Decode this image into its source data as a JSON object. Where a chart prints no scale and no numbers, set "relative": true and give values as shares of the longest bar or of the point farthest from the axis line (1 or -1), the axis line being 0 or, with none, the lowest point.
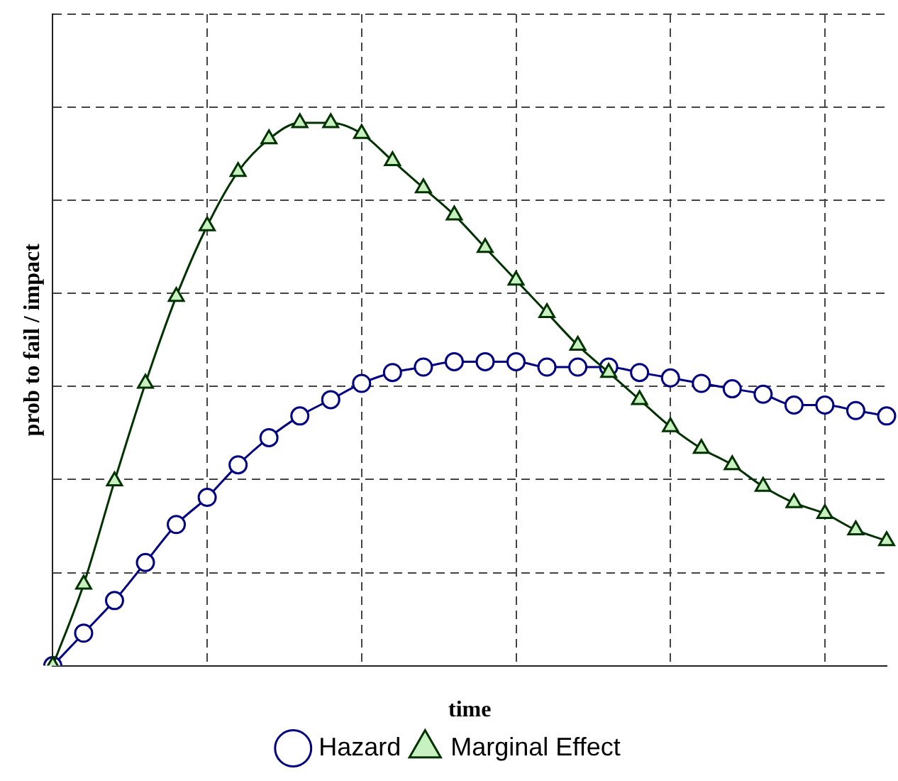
{
  "chart_data": {
    "type": "line",
    "relative": true,
    "xlabel": "time",
    "ylabel": "prob to fail / impact",
    "categories": [
      null,
      null,
      null,
      null,
      null,
      null,
      null,
      null,
      null,
      null,
      null,
      null,
      null,
      null,
      null,
      null,
      null,
      null,
      null,
      null,
      null,
      null,
      null,
      null,
      null,
      null,
      null,
      null
    ],
    "grid": true,
    "legend": "bottom",
    "series": [
      {
        "name": "Hazard",
        "color": "#000080",
        "marker": "circle",
        "values": [
          0,
          0.06,
          0.12,
          0.19,
          0.26,
          0.31,
          0.37,
          0.42,
          0.46,
          0.49,
          0.52,
          0.54,
          0.55,
          0.56,
          0.56,
          0.56,
          0.55,
          0.55,
          0.55,
          0.54,
          0.53,
          0.52,
          0.51,
          0.5,
          0.48,
          0.48,
          0.47,
          0.46
        ]
      },
      {
        "name": "Marginal Effect",
        "color": "#003300",
        "marker": "triangle",
        "values": [
          0,
          0.15,
          0.34,
          0.52,
          0.68,
          0.81,
          0.91,
          0.97,
          1.0,
          1.0,
          0.98,
          0.93,
          0.88,
          0.83,
          0.77,
          0.71,
          0.65,
          0.59,
          0.54,
          0.49,
          0.44,
          0.4,
          0.37,
          0.33,
          0.3,
          0.28,
          0.25,
          0.23
        ]
      }
    ]
  }
}
